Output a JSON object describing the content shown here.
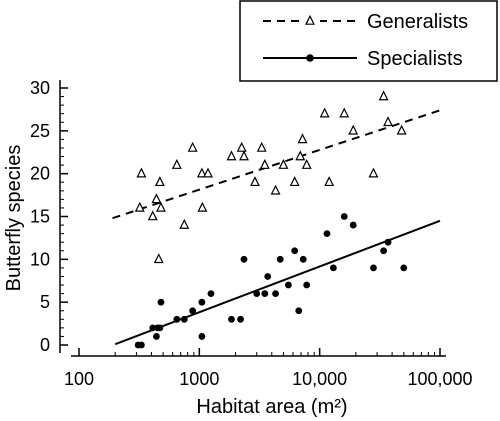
{
  "chart_data": {
    "type": "scatter",
    "xlabel": "Habitat area (m²)",
    "ylabel": "Butterfly species",
    "x_scale": "log",
    "xlim": [
      100,
      100000
    ],
    "ylim": [
      0,
      30
    ],
    "x_ticks": [
      100,
      1000,
      10000,
      100000
    ],
    "x_tick_labels": [
      "100",
      "1000",
      "10,000",
      "100,000"
    ],
    "y_ticks": [
      0,
      5,
      10,
      15,
      20,
      25,
      30
    ],
    "y_tick_labels": [
      "0",
      "5",
      "10",
      "15",
      "20",
      "25",
      "30"
    ],
    "grid": false,
    "legend_position": "top-right",
    "series": [
      {
        "name": "Generalists",
        "marker": "open-triangle",
        "line_style": "dashed",
        "color": "#000000",
        "points": [
          [
            320,
            16
          ],
          [
            330,
            20
          ],
          [
            410,
            15
          ],
          [
            440,
            17
          ],
          [
            460,
            10
          ],
          [
            470,
            19
          ],
          [
            480,
            16
          ],
          [
            650,
            21
          ],
          [
            750,
            14
          ],
          [
            880,
            23
          ],
          [
            1050,
            20
          ],
          [
            1060,
            16
          ],
          [
            1180,
            20
          ],
          [
            1850,
            22
          ],
          [
            2250,
            23
          ],
          [
            2350,
            22
          ],
          [
            2900,
            19
          ],
          [
            3300,
            23
          ],
          [
            3500,
            21
          ],
          [
            4300,
            18
          ],
          [
            5000,
            21
          ],
          [
            6200,
            19
          ],
          [
            6900,
            22
          ],
          [
            7200,
            24
          ],
          [
            7800,
            21
          ],
          [
            11000,
            27
          ],
          [
            12000,
            19
          ],
          [
            16000,
            27
          ],
          [
            19000,
            25
          ],
          [
            28000,
            20
          ],
          [
            34000,
            29
          ],
          [
            37000,
            26
          ],
          [
            48000,
            25
          ]
        ],
        "trend": [
          [
            190,
            14.8
          ],
          [
            100000,
            27.4
          ]
        ]
      },
      {
        "name": "Specialists",
        "marker": "filled-circle",
        "line_style": "solid",
        "color": "#000000",
        "points": [
          [
            310,
            0
          ],
          [
            330,
            0
          ],
          [
            410,
            2
          ],
          [
            440,
            1
          ],
          [
            450,
            2
          ],
          [
            470,
            2
          ],
          [
            480,
            5
          ],
          [
            650,
            3
          ],
          [
            750,
            3
          ],
          [
            880,
            4
          ],
          [
            1050,
            5
          ],
          [
            1050,
            1
          ],
          [
            1250,
            6
          ],
          [
            1850,
            3
          ],
          [
            2200,
            3
          ],
          [
            2350,
            10
          ],
          [
            3000,
            6
          ],
          [
            3500,
            6
          ],
          [
            3700,
            8
          ],
          [
            4300,
            6
          ],
          [
            4700,
            10
          ],
          [
            5500,
            7
          ],
          [
            6200,
            11
          ],
          [
            6700,
            4
          ],
          [
            7300,
            10
          ],
          [
            7800,
            7
          ],
          [
            11500,
            13
          ],
          [
            13000,
            9
          ],
          [
            16000,
            15
          ],
          [
            19000,
            14
          ],
          [
            28000,
            9
          ],
          [
            34000,
            11
          ],
          [
            37000,
            12
          ],
          [
            50000,
            9
          ]
        ],
        "trend": [
          [
            200,
            0.1
          ],
          [
            100000,
            14.5
          ]
        ]
      }
    ]
  }
}
